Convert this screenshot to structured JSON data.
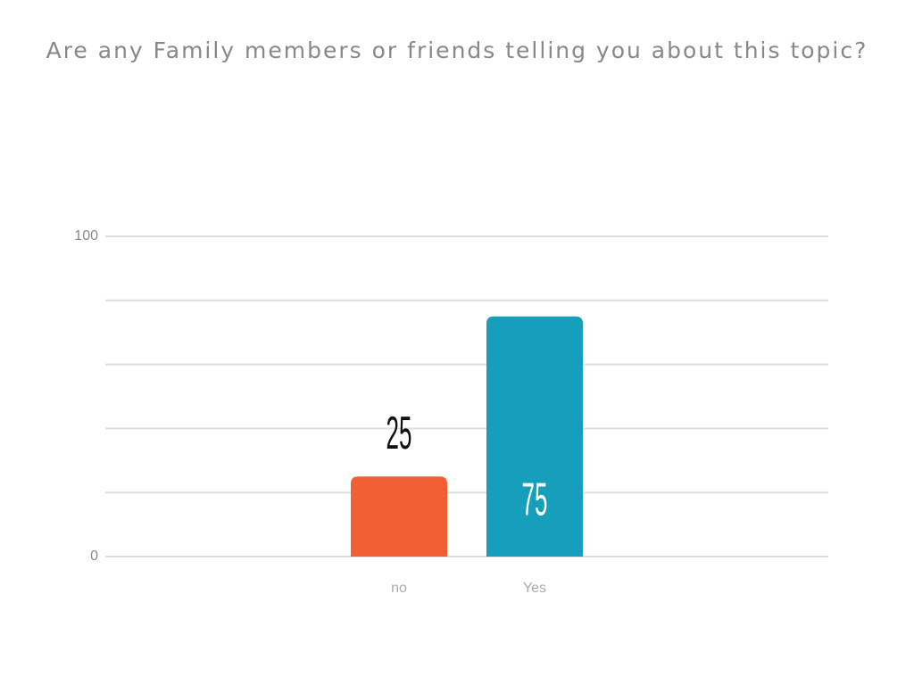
{
  "chart_data": {
    "type": "bar",
    "title": "Are any Family members or friends telling you about this topic?",
    "categories": [
      "no",
      "Yes"
    ],
    "values": [
      25,
      75
    ],
    "colors": [
      "#f06033",
      "#159fba"
    ],
    "ylim": [
      0,
      100
    ],
    "yticks": [
      0,
      100
    ],
    "ygrid": [
      0,
      20,
      40,
      60,
      80,
      100
    ],
    "grid": true
  }
}
